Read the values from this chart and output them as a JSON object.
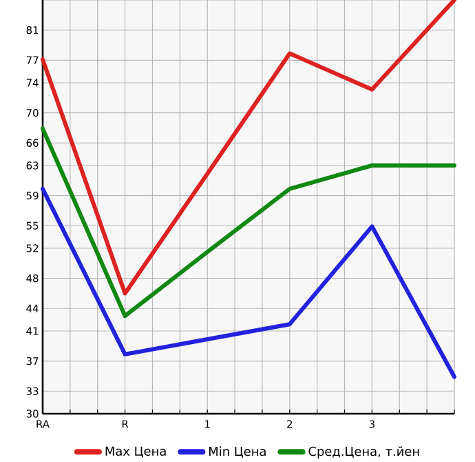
{
  "chart_data": {
    "type": "line",
    "categories": [
      "RA",
      "R",
      "1",
      "2",
      "3",
      null
    ],
    "series": [
      {
        "name": "Max Цена",
        "color": "#dd2222",
        "values": [
          77.1,
          46,
          61.9,
          77.9,
          73.1,
          85
        ]
      },
      {
        "name": "Min Цена",
        "color": "#2222dd",
        "values": [
          59.9,
          37.9,
          39.9,
          41.9,
          54.9,
          34.9
        ]
      },
      {
        "name": "Сред.Цена, т.йен",
        "color": "#118811",
        "values": [
          67.9,
          43,
          51.5,
          59.9,
          63,
          63
        ]
      }
    ],
    "ylim": [
      30,
      85
    ],
    "yticks": [
      30,
      33,
      37,
      41,
      44,
      48,
      52,
      55,
      59,
      63,
      66,
      70,
      74,
      77,
      81,
      {
        "value": 85,
        "label": null
      }
    ],
    "grid": true,
    "legend": "bottom"
  }
}
